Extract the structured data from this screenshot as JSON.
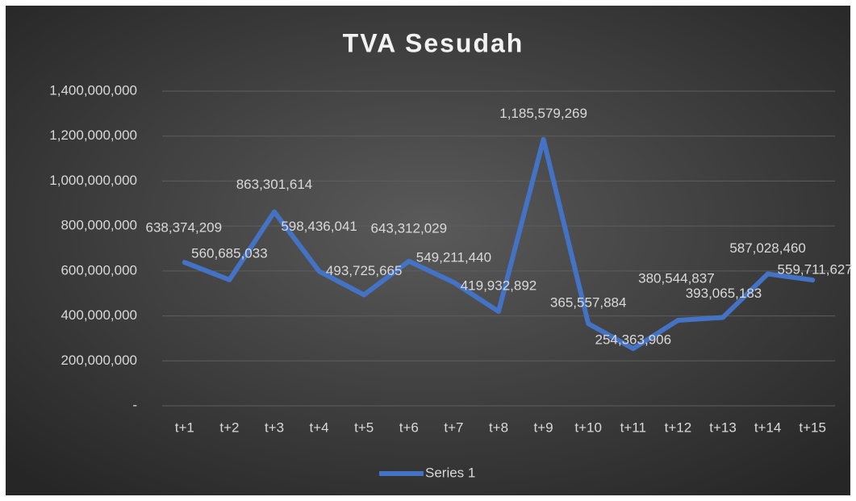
{
  "chart_data": {
    "type": "line",
    "title": "TVA Sesudah",
    "categories": [
      "t+1",
      "t+2",
      "t+3",
      "t+4",
      "t+5",
      "t+6",
      "t+7",
      "t+8",
      "t+9",
      "t+10",
      "t+11",
      "t+12",
      "t+13",
      "t+14",
      "t+15"
    ],
    "series": [
      {
        "name": "Series 1",
        "color": "#4472c4",
        "values": [
          638374209,
          560685033,
          863301614,
          598436041,
          493725665,
          643312029,
          549211440,
          419932892,
          1185579269,
          365557884,
          254363906,
          380544837,
          393065183,
          587028460,
          559711627
        ],
        "value_labels": [
          "638,374,209",
          "560,685,033",
          "863,301,614",
          "598,436,041",
          "493,725,665",
          "643,312,029",
          "549,211,440",
          "419,932,892",
          "1,185,579,269",
          "365,557,884",
          "254,363,906",
          "380,544,837",
          "393,065,183",
          "587,028,460",
          "559,711,627"
        ]
      }
    ],
    "ylim": [
      0,
      1400000000
    ],
    "yticks": [
      {
        "value": 0,
        "label": "-"
      },
      {
        "value": 200000000,
        "label": "200,000,000"
      },
      {
        "value": 400000000,
        "label": "400,000,000"
      },
      {
        "value": 600000000,
        "label": "600,000,000"
      },
      {
        "value": 800000000,
        "label": "800,000,000"
      },
      {
        "value": 1000000000,
        "label": "1,000,000,000"
      },
      {
        "value": 1200000000,
        "label": "1,200,000,000"
      },
      {
        "value": 1400000000,
        "label": "1,400,000,000"
      }
    ],
    "grid": true,
    "legend": "bottom"
  }
}
